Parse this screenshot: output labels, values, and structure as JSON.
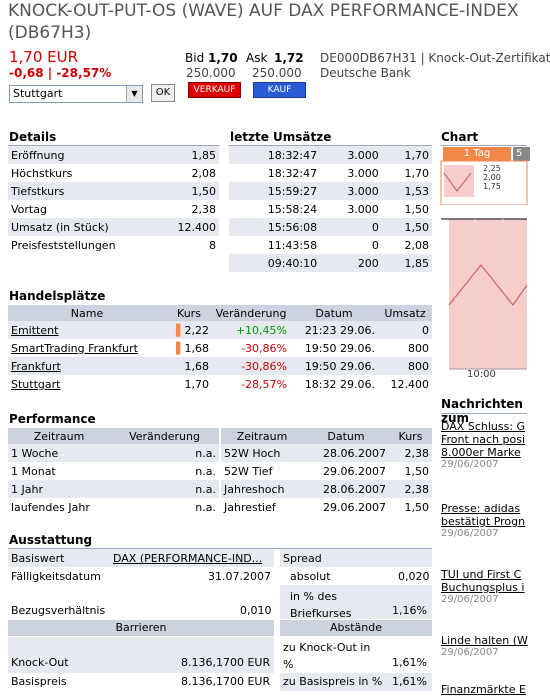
{
  "header": {
    "title_line1": "KNOCK-OUT-PUT-OS (WAVE) AUF DAX PERFORMANCE-INDEX",
    "title_line2": "(DB67H3)",
    "price": "1,70 EUR",
    "change": "-0,68 | -28,57%",
    "bid_label": "Bid",
    "bid_value": "1,70",
    "bid_volume": "250.000",
    "ask_label": "Ask",
    "ask_value": "1,72",
    "ask_volume": "250.000",
    "isin_info": "DE000DB67H31 | Knock-Out-Zertifikat",
    "issuer": "Deutsche Bank",
    "exchange_select": "Stuttgart",
    "ok_label": "OK",
    "sell_label": "VERKAUF",
    "buy_label": "KAUF"
  },
  "details": {
    "title": "Details",
    "rows": [
      {
        "label": "Eröffnung",
        "value": "1,85"
      },
      {
        "label": "Höchstkurs",
        "value": "2,08"
      },
      {
        "label": "Tiefstkurs",
        "value": "1,50"
      },
      {
        "label": "Vortag",
        "value": "2,38"
      },
      {
        "label": "Umsatz (in Stück)",
        "value": "12.400"
      },
      {
        "label": "Preisfeststellungen",
        "value": "8"
      }
    ]
  },
  "trades": {
    "title": "letzte Umsätze",
    "rows": [
      {
        "time": "18:32:47",
        "vol": "3.000",
        "price": "1,70"
      },
      {
        "time": "18:32:47",
        "vol": "3.000",
        "price": "1,70"
      },
      {
        "time": "15:59:27",
        "vol": "3.000",
        "price": "1,53"
      },
      {
        "time": "15:58:24",
        "vol": "3.000",
        "price": "1,50"
      },
      {
        "time": "15:56:08",
        "vol": "0",
        "price": "1,50"
      },
      {
        "time": "11:43:58",
        "vol": "0",
        "price": "2,08"
      },
      {
        "time": "09:40:10",
        "vol": "200",
        "price": "1,85"
      }
    ]
  },
  "chart": {
    "title": "Chart",
    "tab_active": "1 Tag",
    "tab_next": "5",
    "mini_ticks": [
      "2,25",
      "2,00",
      "1,75"
    ],
    "time_label": "10:00"
  },
  "venues": {
    "title": "Handelsplätze",
    "headers": [
      "Name",
      "Kurs",
      "Veränderung",
      "Datum",
      "Umsatz"
    ],
    "rows": [
      {
        "name": "Emittent",
        "kurs": "2,22",
        "change": "+10,45%",
        "date": "21:23 29.06.",
        "vol": "0",
        "dir": "pos",
        "marker": true
      },
      {
        "name": "SmartTrading Frankfurt",
        "kurs": "1,68",
        "change": "-30,86%",
        "date": "19:50 29.06.",
        "vol": "800",
        "dir": "neg",
        "marker": true
      },
      {
        "name": "Frankfurt",
        "kurs": "1,68",
        "change": "-30,86%",
        "date": "19:50 29.06.",
        "vol": "800",
        "dir": "neg",
        "marker": false
      },
      {
        "name": "Stuttgart",
        "kurs": "1,70",
        "change": "-28,57%",
        "date": "18:32 29.06.",
        "vol": "12.400",
        "dir": "neg",
        "marker": false
      }
    ]
  },
  "performance": {
    "title": "Performance",
    "headers_left": [
      "Zeitraum",
      "Veränderung"
    ],
    "headers_right": [
      "Zeitraum",
      "Datum",
      "Kurs"
    ],
    "left": [
      {
        "period": "1 Woche",
        "change": "n.a."
      },
      {
        "period": "1 Monat",
        "change": "n.a."
      },
      {
        "period": "1 Jahr",
        "change": "n.a."
      },
      {
        "period": "laufendes Jahr",
        "change": "n.a."
      }
    ],
    "right": [
      {
        "period": "52W Hoch",
        "date": "28.06.2007",
        "price": "2,38"
      },
      {
        "period": "52W Tief",
        "date": "29.06.2007",
        "price": "1,50"
      },
      {
        "period": "Jahreshoch",
        "date": "28.06.2007",
        "price": "2,38"
      },
      {
        "period": "Jahrestief",
        "date": "29.06.2007",
        "price": "1,50"
      }
    ]
  },
  "ausstattung": {
    "title": "Ausstattung",
    "basiswert_label": "Basiswert",
    "basiswert_value": "DAX (PERFORMANCE-IND...",
    "faelligkeit_label": "Fälligkeitsdatum",
    "faelligkeit_value": "31.07.2007",
    "bezug_label": "Bezugsverhältnis",
    "bezug_value": "0,010",
    "barrieren_label": "Barrieren",
    "knockout_label": "Knock-Out",
    "knockout_value": "8.136,1700 EUR",
    "basispreis_label": "Basispreis",
    "basispreis_value": "8.136,1700 EUR",
    "spread_label": "Spread",
    "absolut_label": "absolut",
    "absolut_value": "0,020",
    "pct_label": "in % des Briefkurses",
    "pct_value": "1,16%",
    "abstaende_label": "Abstände",
    "zu_ko_label": "zu Knock-Out in %",
    "zu_ko_value": "1,61%",
    "zu_bp_label": "zu Basispreis in %",
    "zu_bp_value": "1,61%"
  },
  "news": {
    "title": "Nachrichten zum",
    "items": [
      {
        "line1": "DAX Schluss: G",
        "line2": "Front nach posi",
        "line3": "8.000er Marke",
        "date": "29/06/2007"
      },
      {
        "line1": "Presse: adidas",
        "line2": "bestätigt Progn",
        "date": "29/06/2007"
      },
      {
        "line1": "TUI und First C",
        "line2": "Buchungsplus i",
        "date": "29/06/2007"
      },
      {
        "line1": "Linde halten (W",
        "date": "29/06/2007"
      },
      {
        "line1": "Finanzmärkte E",
        "date": ""
      }
    ]
  },
  "colors": {
    "accent_orange": "#f2874a",
    "neg": "#c00",
    "pos": "#090",
    "header_bg": "#ccd3df"
  }
}
